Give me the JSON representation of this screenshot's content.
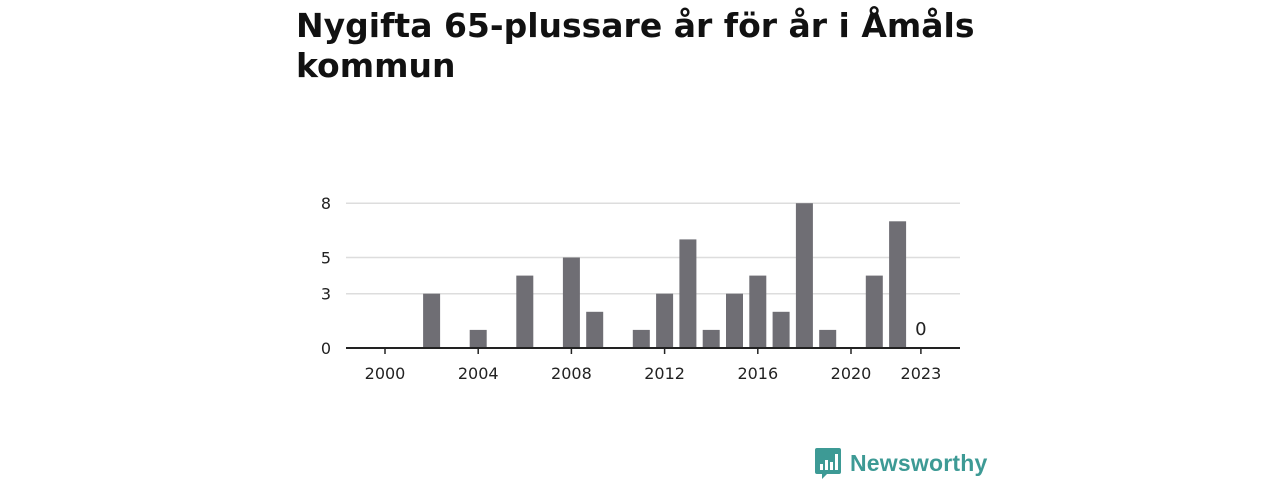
{
  "title": "Nygifta 65-plussare år för år i Åmåls kommun",
  "brand": {
    "name": "Newsworthy",
    "color": "#3d9a95",
    "icon": "bar-chart-speech-bubble-icon"
  },
  "chart_data": {
    "type": "bar",
    "title": "Nygifta 65-plussare år för år i Åmåls kommun",
    "xlabel": "",
    "ylabel": "",
    "categories": [
      "2000",
      "2001",
      "2002",
      "2003",
      "2004",
      "2005",
      "2006",
      "2007",
      "2008",
      "2009",
      "2010",
      "2011",
      "2012",
      "2013",
      "2014",
      "2015",
      "2016",
      "2017",
      "2018",
      "2019",
      "2020",
      "2021",
      "2022",
      "2023"
    ],
    "values": [
      0,
      0,
      3,
      0,
      1,
      0,
      4,
      0,
      5,
      2,
      0,
      1,
      3,
      6,
      1,
      3,
      4,
      2,
      8,
      1,
      0,
      4,
      7,
      0
    ],
    "xticks": [
      "2000",
      "2004",
      "2008",
      "2012",
      "2016",
      "2020",
      "2023"
    ],
    "yticks": [
      0,
      3,
      5,
      8
    ],
    "ylim": [
      0,
      8
    ],
    "grid": true,
    "bar_color": "#6f6e74",
    "annotations": [
      {
        "x": "2023",
        "text": "0"
      }
    ]
  }
}
